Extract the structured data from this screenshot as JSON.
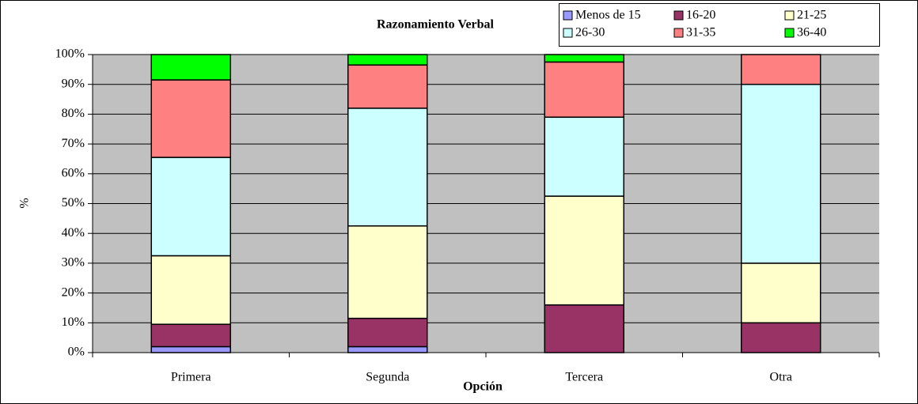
{
  "chart_data": {
    "type": "stacked-bar",
    "title": "Razonamiento Verbal",
    "xlabel": "Opción",
    "ylabel": "%",
    "categories": [
      "Primera",
      "Segunda",
      "Tercera",
      "Otra"
    ],
    "series": [
      {
        "name": "Menos de 15",
        "color": "#9999ff",
        "values": [
          2,
          2,
          0,
          0
        ]
      },
      {
        "name": "16-20",
        "color": "#993366",
        "values": [
          7.5,
          9.5,
          16,
          10
        ]
      },
      {
        "name": "21-25",
        "color": "#ffffcc",
        "values": [
          23,
          31,
          36.5,
          20
        ]
      },
      {
        "name": "26-30",
        "color": "#ccffff",
        "values": [
          33,
          39.5,
          26.5,
          60
        ]
      },
      {
        "name": "31-35",
        "color": "#ff8080",
        "values": [
          26,
          14.5,
          18.5,
          10
        ]
      },
      {
        "name": "36-40",
        "color": "#00ff00",
        "values": [
          8.5,
          3.5,
          2.5,
          0
        ]
      }
    ],
    "ylim": [
      0,
      100
    ],
    "yticks": [
      {
        "value": 0,
        "label": "0%"
      },
      {
        "value": 10,
        "label": "10%"
      },
      {
        "value": 20,
        "label": "20%"
      },
      {
        "value": 30,
        "label": "30%"
      },
      {
        "value": 40,
        "label": "40%"
      },
      {
        "value": 50,
        "label": "50%"
      },
      {
        "value": 60,
        "label": "60%"
      },
      {
        "value": 70,
        "label": "70%"
      },
      {
        "value": 80,
        "label": "80%"
      },
      {
        "value": 90,
        "label": "90%"
      },
      {
        "value": 100,
        "label": "100%"
      }
    ],
    "grid": true,
    "legend": "top-right"
  }
}
